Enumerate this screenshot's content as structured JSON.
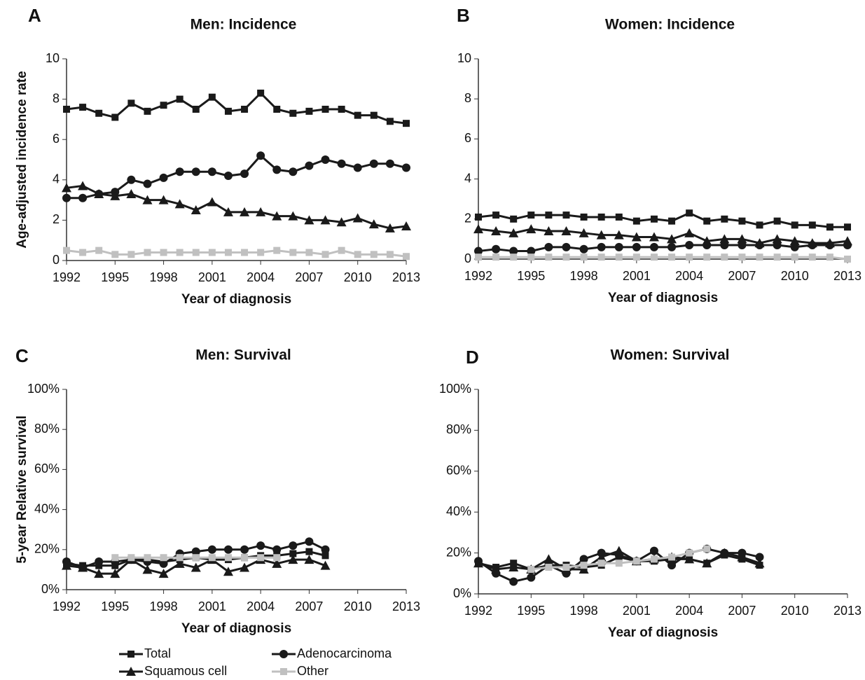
{
  "chart_data": [
    {
      "type": "line",
      "panel": "A",
      "title": "Men: Incidence",
      "x_label": "Year of diagnosis",
      "y_label": "Age-adjusted incidence rate",
      "x": [
        1992,
        1993,
        1994,
        1995,
        1996,
        1997,
        1998,
        1999,
        2000,
        2001,
        2002,
        2003,
        2004,
        2005,
        2006,
        2007,
        2008,
        2009,
        2010,
        2011,
        2012,
        2013
      ],
      "xlim": [
        1992,
        2013
      ],
      "xticks": [
        1992,
        1995,
        1998,
        2001,
        2004,
        2007,
        2010,
        2013
      ],
      "ylim": [
        0,
        10
      ],
      "yticks": [
        0,
        2,
        4,
        6,
        8,
        10
      ],
      "series": [
        {
          "name": "Total",
          "color": "#1a1a1a",
          "marker": "square",
          "values": [
            7.5,
            7.6,
            7.3,
            7.1,
            7.8,
            7.4,
            7.7,
            8.0,
            7.5,
            8.1,
            7.4,
            7.5,
            8.3,
            7.5,
            7.3,
            7.4,
            7.5,
            7.5,
            7.2,
            7.2,
            6.9,
            6.8
          ]
        },
        {
          "name": "Adenocarcinoma",
          "color": "#1a1a1a",
          "marker": "circle",
          "values": [
            3.1,
            3.1,
            3.3,
            3.4,
            4.0,
            3.8,
            4.1,
            4.4,
            4.4,
            4.4,
            4.2,
            4.3,
            5.2,
            4.5,
            4.4,
            4.7,
            5.0,
            4.8,
            4.6,
            4.8,
            4.8,
            4.6
          ]
        },
        {
          "name": "Squamous cell",
          "color": "#1a1a1a",
          "marker": "triangle",
          "values": [
            3.6,
            3.7,
            3.3,
            3.2,
            3.3,
            3.0,
            3.0,
            2.8,
            2.5,
            2.9,
            2.4,
            2.4,
            2.4,
            2.2,
            2.2,
            2.0,
            2.0,
            1.9,
            2.1,
            1.8,
            1.6,
            1.7
          ]
        },
        {
          "name": "Other",
          "color": "#c0c0c0",
          "marker": "square",
          "values": [
            0.5,
            0.4,
            0.5,
            0.3,
            0.3,
            0.4,
            0.4,
            0.4,
            0.4,
            0.4,
            0.4,
            0.4,
            0.4,
            0.5,
            0.4,
            0.4,
            0.3,
            0.5,
            0.3,
            0.3,
            0.3,
            0.2
          ]
        }
      ]
    },
    {
      "type": "line",
      "panel": "B",
      "title": "Women: Incidence",
      "x_label": "Year of diagnosis",
      "x": [
        1992,
        1993,
        1994,
        1995,
        1996,
        1997,
        1998,
        1999,
        2000,
        2001,
        2002,
        2003,
        2004,
        2005,
        2006,
        2007,
        2008,
        2009,
        2010,
        2011,
        2012,
        2013
      ],
      "xlim": [
        1992,
        2013
      ],
      "xticks": [
        1992,
        1995,
        1998,
        2001,
        2004,
        2007,
        2010,
        2013
      ],
      "ylim": [
        0,
        10
      ],
      "yticks": [
        0,
        2,
        4,
        6,
        8,
        10
      ],
      "series": [
        {
          "name": "Total",
          "color": "#1a1a1a",
          "marker": "square",
          "values": [
            2.1,
            2.2,
            2.0,
            2.2,
            2.2,
            2.2,
            2.1,
            2.1,
            2.1,
            1.9,
            2.0,
            1.9,
            2.3,
            1.9,
            2.0,
            1.9,
            1.7,
            1.9,
            1.7,
            1.7,
            1.6,
            1.6
          ]
        },
        {
          "name": "Adenocarcinoma",
          "color": "#1a1a1a",
          "marker": "circle",
          "values": [
            0.4,
            0.5,
            0.4,
            0.4,
            0.6,
            0.6,
            0.5,
            0.6,
            0.6,
            0.6,
            0.6,
            0.6,
            0.7,
            0.7,
            0.7,
            0.7,
            0.7,
            0.7,
            0.6,
            0.7,
            0.7,
            0.7
          ]
        },
        {
          "name": "Squamous cell",
          "color": "#1a1a1a",
          "marker": "triangle",
          "values": [
            1.5,
            1.4,
            1.3,
            1.5,
            1.4,
            1.4,
            1.3,
            1.2,
            1.2,
            1.1,
            1.1,
            1.0,
            1.3,
            0.9,
            1.0,
            1.0,
            0.8,
            1.0,
            0.9,
            0.8,
            0.8,
            0.9
          ]
        },
        {
          "name": "Other",
          "color": "#c0c0c0",
          "marker": "square",
          "values": [
            0.1,
            0.1,
            0.1,
            0.1,
            0.1,
            0.1,
            0.1,
            0.1,
            0.1,
            0.1,
            0.1,
            0.1,
            0.1,
            0.1,
            0.1,
            0.1,
            0.1,
            0.1,
            0.1,
            0.1,
            0.1,
            0.0
          ]
        }
      ]
    },
    {
      "type": "line",
      "panel": "C",
      "title": "Men: Survival",
      "x_label": "Year of diagnosis",
      "y_label": "5-year Relative survival",
      "x": [
        1992,
        1993,
        1994,
        1995,
        1996,
        1997,
        1998,
        1999,
        2000,
        2001,
        2002,
        2003,
        2004,
        2005,
        2006,
        2007,
        2008,
        2009,
        2010,
        2011,
        2012,
        2013
      ],
      "xlim": [
        1992,
        2013
      ],
      "xticks": [
        1992,
        1995,
        1998,
        2001,
        2004,
        2007,
        2010,
        2013
      ],
      "ylim": [
        0,
        100
      ],
      "yticks": [
        {
          "value": 0,
          "label": "0%"
        },
        {
          "value": 20,
          "label": "20%"
        },
        {
          "value": 40,
          "label": "40%"
        },
        {
          "value": 60,
          "label": "60%"
        },
        {
          "value": 80,
          "label": "80%"
        },
        {
          "value": 100,
          "label": "100%"
        }
      ],
      "series": [
        {
          "name": "Total",
          "color": "#1a1a1a",
          "marker": "square",
          "values": [
            13,
            12,
            12,
            12,
            15,
            15,
            14,
            15,
            16,
            15,
            15,
            16,
            17,
            17,
            18,
            19,
            17,
            null,
            null,
            null,
            null,
            null
          ]
        },
        {
          "name": "Adenocarcinoma",
          "color": "#1a1a1a",
          "marker": "circle",
          "values": [
            14,
            11,
            14,
            14,
            15,
            14,
            13,
            18,
            19,
            20,
            20,
            20,
            22,
            20,
            22,
            24,
            20,
            null,
            null,
            null,
            null,
            null
          ]
        },
        {
          "name": "Squamous cell",
          "color": "#1a1a1a",
          "marker": "triangle",
          "values": [
            12,
            11,
            8,
            8,
            15,
            10,
            8,
            13,
            11,
            15,
            9,
            11,
            15,
            13,
            15,
            15,
            12,
            null,
            null,
            null,
            null,
            null
          ]
        },
        {
          "name": "Other",
          "color": "#c0c0c0",
          "marker": "square",
          "values": [
            null,
            null,
            null,
            16,
            16,
            16,
            16,
            16,
            16,
            16,
            16,
            16,
            16,
            16,
            null,
            null,
            null,
            null,
            null,
            null,
            null,
            null
          ]
        }
      ]
    },
    {
      "type": "line",
      "panel": "D",
      "title": "Women: Survival",
      "x_label": "Year of diagnosis",
      "x": [
        1992,
        1993,
        1994,
        1995,
        1996,
        1997,
        1998,
        1999,
        2000,
        2001,
        2002,
        2003,
        2004,
        2005,
        2006,
        2007,
        2008,
        2009,
        2010,
        2011,
        2012,
        2013
      ],
      "xlim": [
        1992,
        2013
      ],
      "xticks": [
        1992,
        1995,
        1998,
        2001,
        2004,
        2007,
        2010,
        2013
      ],
      "ylim": [
        0,
        100
      ],
      "yticks": [
        {
          "value": 0,
          "label": "0%"
        },
        {
          "value": 20,
          "label": "20%"
        },
        {
          "value": 40,
          "label": "40%"
        },
        {
          "value": 60,
          "label": "60%"
        },
        {
          "value": 80,
          "label": "80%"
        },
        {
          "value": 100,
          "label": "100%"
        }
      ],
      "series": [
        {
          "name": "Total",
          "color": "#1a1a1a",
          "marker": "square",
          "values": [
            15,
            13,
            15,
            12,
            14,
            14,
            13,
            14,
            18,
            16,
            16,
            17,
            17,
            15,
            19,
            17,
            14,
            null,
            null,
            null,
            null,
            null
          ]
        },
        {
          "name": "Adenocarcinoma",
          "color": "#1a1a1a",
          "marker": "circle",
          "values": [
            16,
            10,
            6,
            8,
            14,
            10,
            17,
            20,
            19,
            16,
            21,
            14,
            20,
            22,
            20,
            20,
            18,
            null,
            null,
            null,
            null,
            null
          ]
        },
        {
          "name": "Squamous cell",
          "color": "#1a1a1a",
          "marker": "triangle",
          "values": [
            15,
            12,
            13,
            12,
            17,
            12,
            12,
            18,
            21,
            16,
            17,
            18,
            17,
            15,
            20,
            18,
            15,
            null,
            null,
            null,
            null,
            null
          ]
        },
        {
          "name": "Other",
          "color": "#c0c0c0",
          "marker": "square",
          "values": [
            null,
            null,
            null,
            12,
            13,
            13,
            14,
            15,
            15,
            16,
            17,
            18,
            20,
            22,
            null,
            null,
            null,
            null,
            null,
            null,
            null,
            null
          ]
        }
      ]
    }
  ]
}
